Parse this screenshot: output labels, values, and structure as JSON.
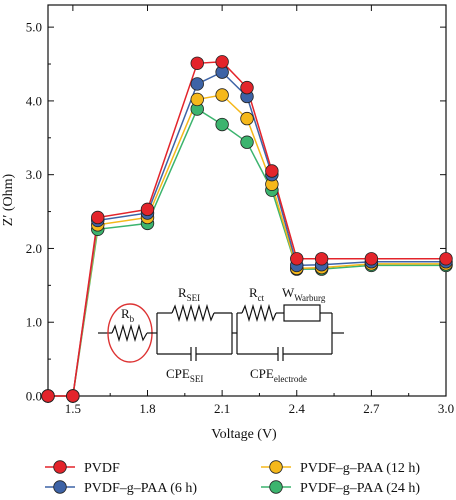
{
  "chart_data": {
    "type": "line",
    "xlabel": "Voltage (V)",
    "ylabel": "Z′ (Ohm)",
    "xlim": [
      1.4,
      3.0
    ],
    "ylim": [
      0.0,
      5.3
    ],
    "xticks": [
      "1.5",
      "1.8",
      "2.1",
      "2.4",
      "2.7",
      "3.0"
    ],
    "xtick_values": [
      1.5,
      1.8,
      2.1,
      2.4,
      2.7,
      3.0
    ],
    "yticks": [
      "0.0",
      "1.0",
      "2.0",
      "3.0",
      "4.0",
      "5.0"
    ],
    "ytick_values": [
      0.0,
      1.0,
      2.0,
      3.0,
      4.0,
      5.0
    ],
    "grid": false,
    "legend_position": "bottom",
    "series": [
      {
        "name": "PVDF",
        "color": "#e3242b",
        "x": [
          1.4,
          1.5,
          1.6,
          1.8,
          2.0,
          2.1,
          2.2,
          2.3,
          2.4,
          2.5,
          2.7,
          3.0
        ],
        "y": [
          0.0,
          0.0,
          2.42,
          2.53,
          4.51,
          4.53,
          4.18,
          3.05,
          1.86,
          1.86,
          1.86,
          1.86
        ]
      },
      {
        "name": "PVDF–g–PAA (6 h)",
        "color": "#3d63a6",
        "x": [
          1.4,
          1.5,
          1.6,
          1.8,
          2.0,
          2.1,
          2.2,
          2.3,
          2.4,
          2.5,
          2.7,
          3.0
        ],
        "y": [
          0.0,
          0.0,
          2.38,
          2.48,
          4.23,
          4.39,
          4.06,
          3.0,
          1.77,
          1.78,
          1.82,
          1.82
        ]
      },
      {
        "name": "PVDF–g–PAA (12 h)",
        "color": "#f5b81b",
        "x": [
          1.4,
          1.5,
          1.6,
          1.8,
          2.0,
          2.1,
          2.2,
          2.3,
          2.4,
          2.5,
          2.7,
          3.0
        ],
        "y": [
          0.0,
          0.0,
          2.32,
          2.42,
          4.02,
          4.08,
          3.76,
          2.87,
          1.73,
          1.74,
          1.79,
          1.79
        ]
      },
      {
        "name": "PVDF–g–PAA (24 h)",
        "color": "#3cb46e",
        "x": [
          1.4,
          1.5,
          1.6,
          1.8,
          2.0,
          2.1,
          2.2,
          2.3,
          2.4,
          2.5,
          2.7,
          3.0
        ],
        "y": [
          0.0,
          0.0,
          2.26,
          2.34,
          3.89,
          3.68,
          3.44,
          2.79,
          1.72,
          1.72,
          1.77,
          1.77
        ]
      }
    ],
    "inset": {
      "rb": {
        "main": "R",
        "sub": "b"
      },
      "rsei": {
        "main": "R",
        "sub": "SEI"
      },
      "rct": {
        "main": "R",
        "sub": "ct"
      },
      "warburg": {
        "main": "W",
        "sub": "Warburg"
      },
      "cpe_sei": {
        "main": "CPE",
        "sub": "SEI"
      },
      "cpe_electrode": {
        "main": "CPE",
        "sub": "electrode"
      }
    }
  }
}
